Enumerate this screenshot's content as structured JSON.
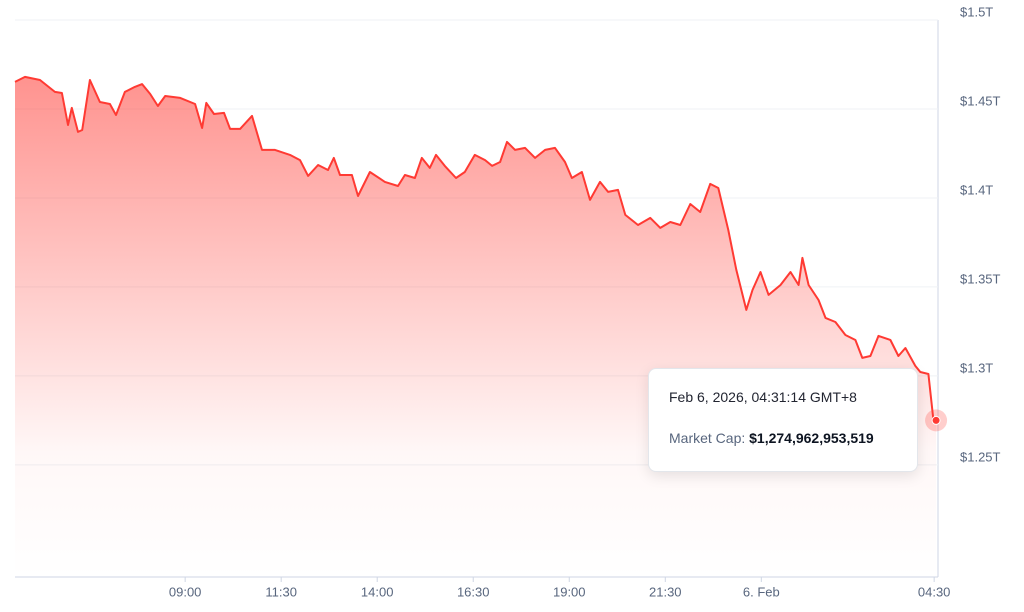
{
  "chart_data": {
    "type": "area",
    "x": [
      4.57,
      4.83,
      5.22,
      5.61,
      5.79,
      5.95,
      6.05,
      6.21,
      6.32,
      6.52,
      6.78,
      7.04,
      7.2,
      7.43,
      7.69,
      7.88,
      8.09,
      8.29,
      8.48,
      8.87,
      9.26,
      9.44,
      9.55,
      9.75,
      10.01,
      10.17,
      10.43,
      10.74,
      11.0,
      11.34,
      11.73,
      11.99,
      12.2,
      12.46,
      12.72,
      12.87,
      13.03,
      13.34,
      13.5,
      13.81,
      14.2,
      14.54,
      14.72,
      14.98,
      15.16,
      15.37,
      15.53,
      15.76,
      16.05,
      16.28,
      16.54,
      16.81,
      16.99,
      17.2,
      17.38,
      17.59,
      17.85,
      18.11,
      18.37,
      18.63,
      18.89,
      19.07,
      19.33,
      19.54,
      19.8,
      20.01,
      20.27,
      20.46,
      20.79,
      21.11,
      21.37,
      21.63,
      21.89,
      22.15,
      22.41,
      22.67,
      22.88,
      23.14,
      23.35,
      23.61,
      23.77,
      23.98,
      24.19,
      24.5,
      24.76,
      24.97,
      25.07,
      25.23,
      25.49,
      25.67,
      25.93,
      26.19,
      26.45,
      26.63,
      26.84,
      27.05,
      27.36,
      27.57,
      27.75,
      28.01,
      28.14,
      28.35,
      28.48,
      28.55
    ],
    "values": [
      1.4652,
      1.468,
      1.4663,
      1.4596,
      1.459,
      1.441,
      1.4506,
      1.4371,
      1.4382,
      1.4663,
      1.4539,
      1.4528,
      1.4466,
      1.4596,
      1.4624,
      1.464,
      1.4584,
      1.4517,
      1.4573,
      1.4562,
      1.4528,
      1.4393,
      1.4534,
      1.4472,
      1.4478,
      1.4388,
      1.4388,
      1.4461,
      1.427,
      1.427,
      1.4242,
      1.4213,
      1.4124,
      1.4185,
      1.4157,
      1.4225,
      1.4129,
      1.4129,
      1.4011,
      1.4146,
      1.409,
      1.4067,
      1.4129,
      1.4112,
      1.4225,
      1.4169,
      1.4242,
      1.418,
      1.4112,
      1.4146,
      1.4242,
      1.4213,
      1.418,
      1.4202,
      1.4315,
      1.427,
      1.4281,
      1.4225,
      1.427,
      1.4281,
      1.4202,
      1.4112,
      1.4146,
      1.3989,
      1.409,
      1.4034,
      1.4045,
      1.3905,
      1.3848,
      1.3888,
      1.3832,
      1.3865,
      1.3848,
      1.3966,
      1.3921,
      1.4079,
      1.4056,
      1.382,
      1.3596,
      1.3371,
      1.3483,
      1.3584,
      1.3455,
      1.3511,
      1.3584,
      1.3511,
      1.3663,
      1.3511,
      1.3427,
      1.3326,
      1.3303,
      1.323,
      1.3202,
      1.3101,
      1.3112,
      1.3225,
      1.3202,
      1.3112,
      1.3157,
      1.3056,
      1.3022,
      1.3011,
      1.2753,
      1.275
    ],
    "color": "#ff3a33",
    "xlim": [
      4.57,
      28.6
    ],
    "ylim": [
      1.187,
      1.5
    ],
    "xticks": [
      {
        "value": 9,
        "label": "09:00"
      },
      {
        "value": 11.5,
        "label": "11:30"
      },
      {
        "value": 14,
        "label": "14:00"
      },
      {
        "value": 16.5,
        "label": "16:30"
      },
      {
        "value": 19,
        "label": "19:00"
      },
      {
        "value": 21.5,
        "label": "21:30"
      },
      {
        "value": 24,
        "label": "6. Feb"
      },
      {
        "value": 28.5,
        "label": "04:30"
      }
    ],
    "yticks": [
      {
        "value": 1.25,
        "label": "$1.25T"
      },
      {
        "value": 1.3,
        "label": "$1.3T"
      },
      {
        "value": 1.35,
        "label": "$1.35T"
      },
      {
        "value": 1.4,
        "label": "$1.4T"
      },
      {
        "value": 1.45,
        "label": "$1.45T"
      },
      {
        "value": 1.5,
        "label": "$1.5T"
      }
    ],
    "grid": true,
    "tooltip": {
      "title": "Feb 6, 2026, 04:31:14 GMT+8",
      "label": "Market Cap:",
      "value": "$1,274,962,953,519"
    }
  }
}
